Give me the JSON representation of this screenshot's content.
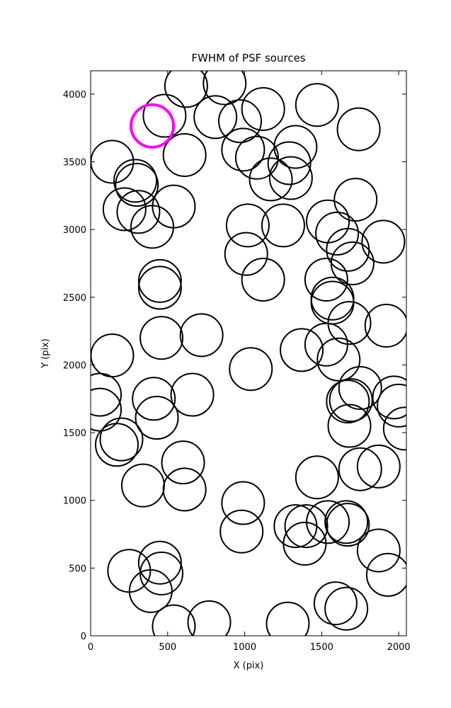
{
  "chart_data": {
    "type": "scatter",
    "title": "FWHM of PSF sources",
    "x_label": "X (pix)",
    "y_label": "Y (pix)",
    "xlim": [
      0,
      2050
    ],
    "ylim": [
      0,
      4172
    ],
    "xticks": [
      0,
      500,
      1000,
      1500,
      2000
    ],
    "yticks": [
      0,
      500,
      1000,
      1500,
      2000,
      2500,
      3000,
      3500,
      4000
    ],
    "marker": "open-circle",
    "series": [
      {
        "color": "#000000",
        "x": [
          620,
          870,
          480,
          810,
          970,
          1120,
          1470,
          1740,
          140,
          610,
          990,
          1080,
          1330,
          1290,
          1170,
          1300,
          290,
          300,
          220,
          310,
          540,
          400,
          1720,
          1020,
          1250,
          1540,
          1600,
          1670,
          1700,
          1900,
          1010,
          1120,
          450,
          450,
          1530,
          1570,
          1570,
          1680,
          1920,
          460,
          720,
          140,
          1370,
          1530,
          1610,
          1040,
          60,
          60,
          410,
          660,
          430,
          1750,
          1670,
          1690,
          1680,
          1970,
          2000,
          2040,
          200,
          170,
          600,
          340,
          610,
          1470,
          1750,
          1870,
          990,
          980,
          1330,
          1400,
          1540,
          1660,
          1670,
          1390,
          1870,
          1930,
          450,
          460,
          250,
          390,
          540,
          770,
          1280,
          1590,
          1660
        ],
        "values": [
          4060,
          4080,
          3840,
          3830,
          3800,
          3890,
          3920,
          3740,
          3500,
          3550,
          3590,
          3530,
          3610,
          3490,
          3370,
          3380,
          3360,
          3330,
          3150,
          3130,
          3170,
          3020,
          3220,
          3030,
          3030,
          3060,
          2970,
          2850,
          2750,
          2910,
          2820,
          2630,
          2620,
          2570,
          2630,
          2490,
          2460,
          2310,
          2290,
          2200,
          2220,
          2070,
          2110,
          2150,
          2040,
          1970,
          1780,
          1670,
          1750,
          1780,
          1610,
          1830,
          1730,
          1740,
          1550,
          1760,
          1700,
          1530,
          1450,
          1410,
          1280,
          1110,
          1080,
          1170,
          1230,
          1250,
          980,
          770,
          810,
          810,
          840,
          840,
          820,
          680,
          630,
          450,
          540,
          460,
          480,
          330,
          70,
          100,
          90,
          240,
          200
        ]
      },
      {
        "color": "#ff00ff",
        "x": [
          400
        ],
        "values": [
          3765
        ]
      }
    ]
  }
}
